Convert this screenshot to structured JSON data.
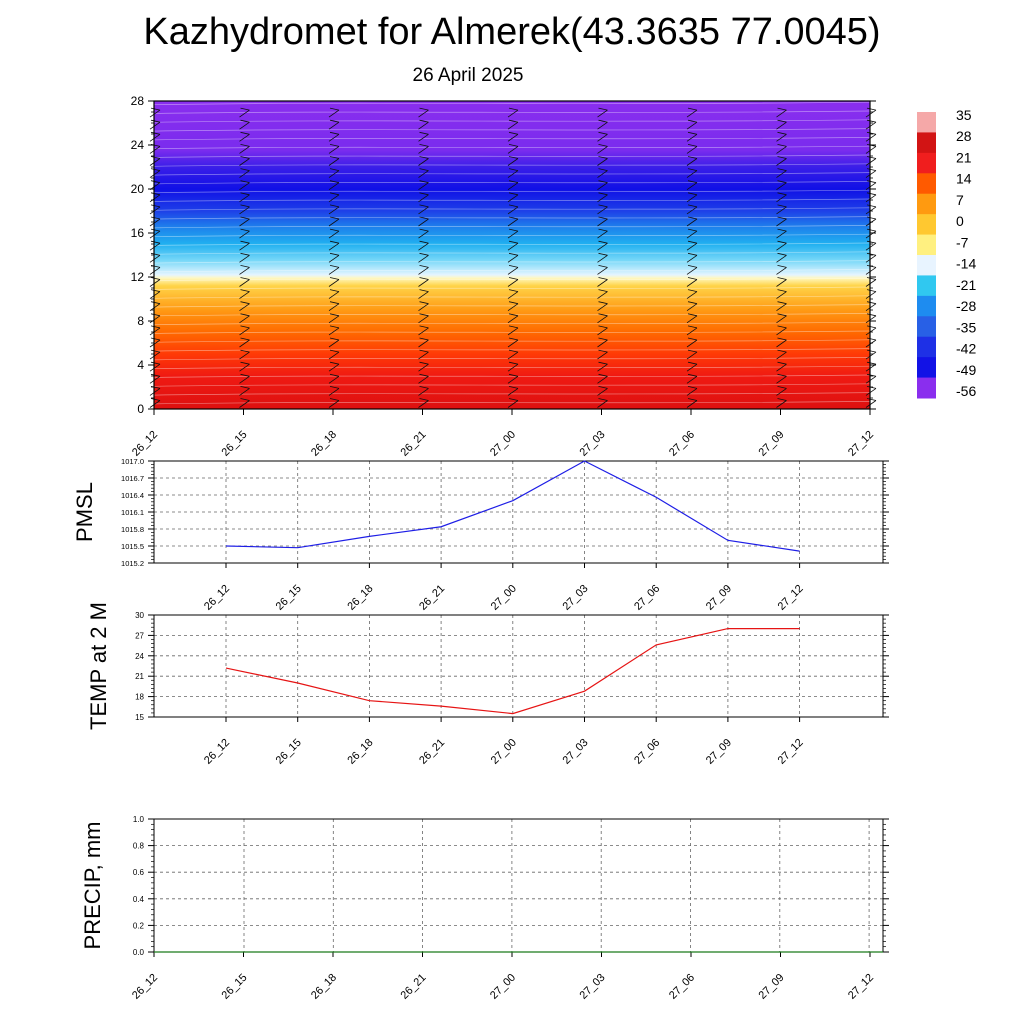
{
  "title": "Kazhydromet for Almerek(43.3635 77.0045)",
  "subtitle": "26 April 2025",
  "chart_data": [
    {
      "type": "heatmap",
      "title": "",
      "x_ticks": [
        "26_12",
        "26_15",
        "26_18",
        "26_21",
        "27_00",
        "27_03",
        "27_06",
        "27_09",
        "27_12"
      ],
      "y_ticks": [
        0,
        4,
        8,
        12,
        16,
        20,
        24,
        28
      ],
      "ylim": [
        0,
        28
      ],
      "colorbar": {
        "labels": [
          35,
          28,
          21,
          14,
          7,
          0,
          -7,
          -14,
          -21,
          -28,
          -35,
          -42,
          -49,
          -56
        ],
        "colors": [
          "#f5a8a8",
          "#d21414",
          "#f01e1e",
          "#ff5a00",
          "#ff9a10",
          "#ffc830",
          "#fff080",
          "#e8f4ff",
          "#30c8f0",
          "#1e8cf0",
          "#2860e6",
          "#1e30e6",
          "#1212e6",
          "#8a2eee"
        ]
      },
      "bands": [
        {
          "from": 0,
          "to": 4,
          "color": "#e41616"
        },
        {
          "from": 4,
          "to": 8,
          "color": "#ff5500"
        },
        {
          "from": 8,
          "to": 11.8,
          "color": "#ffb020"
        },
        {
          "from": 11.8,
          "to": 14,
          "color": "#c8ecff"
        },
        {
          "from": 14,
          "to": 18,
          "color": "#1ea0f0"
        },
        {
          "from": 18,
          "to": 22,
          "color": "#1414e6"
        },
        {
          "from": 22,
          "to": 28,
          "color": "#8a2eee"
        }
      ],
      "grid": false
    },
    {
      "type": "line",
      "ylabel": "PMSL",
      "x": [
        "26_12",
        "26_15",
        "26_18",
        "26_21",
        "27_00",
        "27_03",
        "27_06",
        "27_09",
        "27_12"
      ],
      "values": [
        1015.5,
        1015.47,
        1015.67,
        1015.84,
        1016.3,
        1017.0,
        1016.36,
        1015.6,
        1015.41
      ],
      "y_ticks": [
        "1015.2",
        "1015.5",
        "1015.8",
        "1016.1",
        "1016.4",
        "1016.7",
        "1017.0"
      ],
      "ylim": [
        1015.2,
        1017.0
      ],
      "color": "#1e1ee6",
      "grid": true
    },
    {
      "type": "line",
      "ylabel": "TEMP at 2 M",
      "x": [
        "26_12",
        "26_15",
        "26_18",
        "26_21",
        "27_00",
        "27_03",
        "27_06",
        "27_09",
        "27_12"
      ],
      "values": [
        22.2,
        20.0,
        17.4,
        16.6,
        15.5,
        18.8,
        25.6,
        28.0,
        28.0
      ],
      "y_ticks": [
        "15",
        "18",
        "21",
        "24",
        "27",
        "30"
      ],
      "ylim": [
        15,
        30
      ],
      "color": "#e61414",
      "grid": true
    },
    {
      "type": "line",
      "ylabel": "PRECIP, mm",
      "x": [
        "26_12",
        "26_15",
        "26_18",
        "26_21",
        "27_00",
        "27_03",
        "27_06",
        "27_09",
        "27_12"
      ],
      "values": [
        0,
        0,
        0,
        0,
        0,
        0,
        0,
        0,
        0
      ],
      "y_ticks": [
        "0.0",
        "0.2",
        "0.4",
        "0.6",
        "0.8",
        "1.0"
      ],
      "ylim": [
        0,
        1.0
      ],
      "color": "#1a7a1a",
      "grid": true
    }
  ]
}
